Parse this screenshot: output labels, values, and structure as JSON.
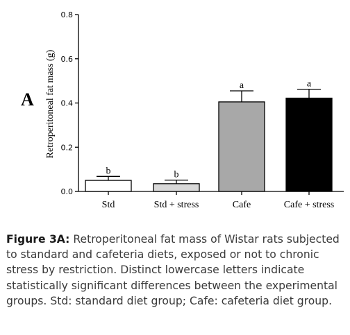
{
  "panel_label": "A",
  "chart_data": {
    "type": "bar",
    "categories": [
      "Std",
      "Std + stress",
      "Cafe",
      "Cafe + stress"
    ],
    "values": [
      0.05,
      0.035,
      0.405,
      0.422
    ],
    "errors": [
      0.018,
      0.016,
      0.05,
      0.04
    ],
    "significance_letters": [
      "b",
      "b",
      "a",
      "a"
    ],
    "bar_colors": [
      "#ffffff",
      "#d9d9d9",
      "#a8a8a8",
      "#000000"
    ],
    "ylabel": "Retroperitoneal fat mass (g)",
    "xlabel": "",
    "ylim": [
      0,
      0.8
    ],
    "yticks": [
      "0.0",
      "0.2",
      "0.4",
      "0.6",
      "0.8"
    ],
    "ytick_values": [
      0,
      0.2,
      0.4,
      0.6,
      0.8
    ],
    "grid": false
  },
  "caption": {
    "label": "Figure 3A:",
    "text": " Retroperitoneal fat mass of Wistar rats subjected to standard and cafeteria diets, exposed or not to chronic stress by restriction. Distinct lowercase letters indicate statistically significant differences between the experimental groups. Std: standard diet group; Cafe: cafeteria diet group."
  }
}
